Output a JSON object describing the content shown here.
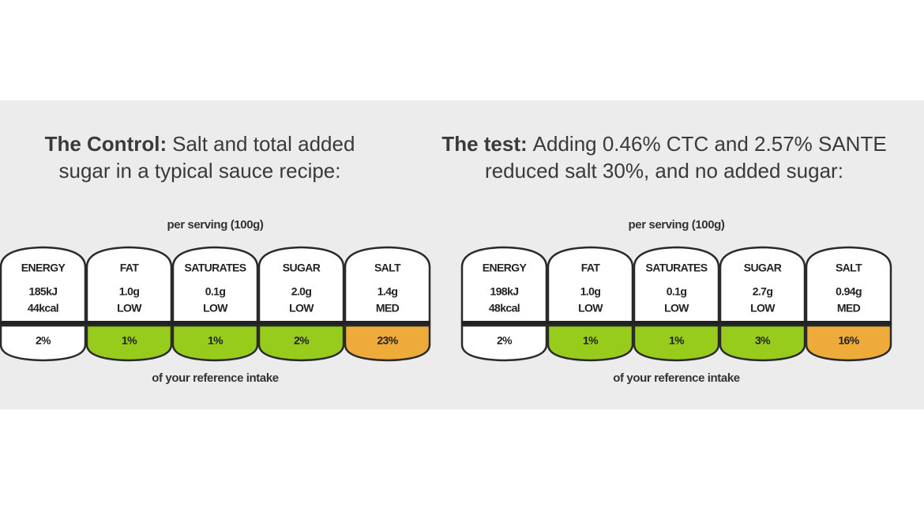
{
  "panels": [
    {
      "title": {
        "bold": "The Control:",
        "line1": "Salt and total added",
        "line2": "sugar in a typical sauce recipe:"
      },
      "per_serving": "per serving (100g)",
      "footer": "of your reference intake",
      "cells": [
        {
          "name": "ENERGY",
          "amount": "185kJ",
          "level": "44kcal",
          "percent": "2%",
          "color": "#ffffff"
        },
        {
          "name": "FAT",
          "amount": "1.0g",
          "level": "LOW",
          "percent": "1%",
          "color": "#97cc1d"
        },
        {
          "name": "SATURATES",
          "amount": "0.1g",
          "level": "LOW",
          "percent": "1%",
          "color": "#97cc1d"
        },
        {
          "name": "SUGAR",
          "amount": "2.0g",
          "level": "LOW",
          "percent": "2%",
          "color": "#97cc1d"
        },
        {
          "name": "SALT",
          "amount": "1.4g",
          "level": "MED",
          "percent": "23%",
          "color": "#eeab3a"
        }
      ]
    },
    {
      "title": {
        "bold": "The test:",
        "line1": "Adding 0.46% CTC and 2.57% SANTE",
        "line2": "reduced salt 30%, and no added sugar:"
      },
      "per_serving": "per serving (100g)",
      "footer": "of your reference intake",
      "cells": [
        {
          "name": "ENERGY",
          "amount": "198kJ",
          "level": "48kcal",
          "percent": "2%",
          "color": "#ffffff"
        },
        {
          "name": "FAT",
          "amount": "1.0g",
          "level": "LOW",
          "percent": "1%",
          "color": "#97cc1d"
        },
        {
          "name": "SATURATES",
          "amount": "0.1g",
          "level": "LOW",
          "percent": "1%",
          "color": "#97cc1d"
        },
        {
          "name": "SUGAR",
          "amount": "2.7g",
          "level": "LOW",
          "percent": "3%",
          "color": "#97cc1d"
        },
        {
          "name": "SALT",
          "amount": "0.94g",
          "level": "MED",
          "percent": "16%",
          "color": "#eeab3a"
        }
      ]
    }
  ]
}
